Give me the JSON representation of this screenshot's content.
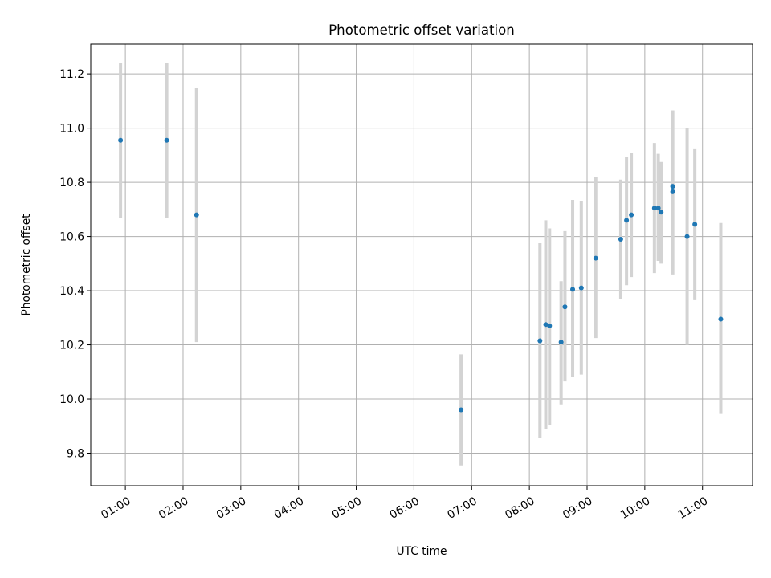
{
  "chart_data": {
    "type": "scatter",
    "title": "Photometric offset variation",
    "xlabel": "UTC time",
    "ylabel": "Photometric offset",
    "x_tick_labels": [
      "01:00",
      "02:00",
      "03:00",
      "04:00",
      "05:00",
      "06:00",
      "07:00",
      "08:00",
      "09:00",
      "10:00",
      "11:00"
    ],
    "x_tick_values": [
      "01:00",
      "02:00",
      "03:00",
      "04:00",
      "05:00",
      "06:00",
      "07:00",
      "08:00",
      "09:00",
      "10:00",
      "11:00"
    ],
    "xlim": [
      "00:24",
      "11:52"
    ],
    "y_tick_labels": [
      "9.8",
      "10.0",
      "10.2",
      "10.4",
      "10.6",
      "10.8",
      "11.0",
      "11.2"
    ],
    "y_tick_values": [
      9.8,
      10.0,
      10.2,
      10.4,
      10.6,
      10.8,
      11.0,
      11.2
    ],
    "ylim": [
      9.68,
      11.31
    ],
    "grid": true,
    "colors": {
      "points": "#1f77b4",
      "errorbars": "#d3d3d3",
      "grid": "#b0b0b0",
      "axes": "#000000"
    },
    "points": [
      {
        "t": "00:55",
        "y": 10.955,
        "lo": 10.67,
        "hi": 11.24
      },
      {
        "t": "01:43",
        "y": 10.955,
        "lo": 10.67,
        "hi": 11.24
      },
      {
        "t": "02:14",
        "y": 10.68,
        "lo": 10.21,
        "hi": 11.15
      },
      {
        "t": "06:49",
        "y": 9.96,
        "lo": 9.755,
        "hi": 10.165
      },
      {
        "t": "08:11",
        "y": 10.215,
        "lo": 9.855,
        "hi": 10.575
      },
      {
        "t": "08:17",
        "y": 10.275,
        "lo": 9.89,
        "hi": 10.66
      },
      {
        "t": "08:21",
        "y": 10.27,
        "lo": 9.905,
        "hi": 10.63
      },
      {
        "t": "08:33",
        "y": 10.21,
        "lo": 9.98,
        "hi": 10.435
      },
      {
        "t": "08:37",
        "y": 10.34,
        "lo": 10.065,
        "hi": 10.62
      },
      {
        "t": "08:45",
        "y": 10.405,
        "lo": 10.08,
        "hi": 10.735
      },
      {
        "t": "08:54",
        "y": 10.41,
        "lo": 10.09,
        "hi": 10.73
      },
      {
        "t": "09:09",
        "y": 10.52,
        "lo": 10.225,
        "hi": 10.82
      },
      {
        "t": "09:35",
        "y": 10.59,
        "lo": 10.37,
        "hi": 10.81
      },
      {
        "t": "09:41",
        "y": 10.66,
        "lo": 10.42,
        "hi": 10.895
      },
      {
        "t": "09:46",
        "y": 10.68,
        "lo": 10.45,
        "hi": 10.91
      },
      {
        "t": "10:10",
        "y": 10.705,
        "lo": 10.465,
        "hi": 10.945
      },
      {
        "t": "10:14",
        "y": 10.705,
        "lo": 10.51,
        "hi": 10.905
      },
      {
        "t": "10:17",
        "y": 10.69,
        "lo": 10.5,
        "hi": 10.875
      },
      {
        "t": "10:29",
        "y": 10.785,
        "lo": 10.46,
        "hi": 11.065
      },
      {
        "t": "10:29",
        "y": 10.765,
        "lo": 10.46,
        "hi": 11.065
      },
      {
        "t": "10:44",
        "y": 10.6,
        "lo": 10.2,
        "hi": 11.0
      },
      {
        "t": "10:52",
        "y": 10.645,
        "lo": 10.365,
        "hi": 10.925
      },
      {
        "t": "11:19",
        "y": 10.295,
        "lo": 9.945,
        "hi": 10.65
      }
    ]
  }
}
